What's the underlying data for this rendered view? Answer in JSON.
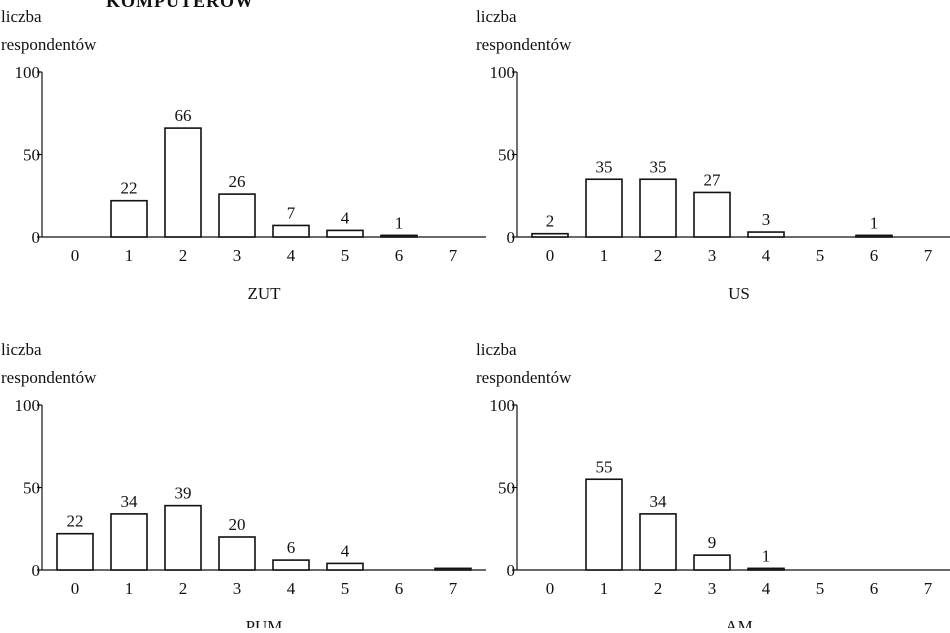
{
  "heading": "KOMPUTERÓW",
  "chart_data": [
    {
      "type": "bar",
      "ylabel": [
        "liczba",
        "respondentów"
      ],
      "xlabel": "ZUT",
      "categories": [
        "0",
        "1",
        "2",
        "3",
        "4",
        "5",
        "6",
        "7"
      ],
      "values": [
        0,
        22,
        66,
        26,
        7,
        4,
        1,
        0
      ],
      "labels": [
        "",
        "22",
        "66",
        "26",
        "7",
        "4",
        "1",
        ""
      ],
      "yticks": [
        "0",
        "50",
        "100"
      ],
      "ylim": [
        0,
        100
      ]
    },
    {
      "type": "bar",
      "ylabel": [
        "liczba",
        "respondentów"
      ],
      "xlabel": "US",
      "categories": [
        "0",
        "1",
        "2",
        "3",
        "4",
        "5",
        "6",
        "7"
      ],
      "values": [
        2,
        35,
        35,
        27,
        3,
        0,
        1,
        0
      ],
      "labels": [
        "2",
        "35",
        "35",
        "27",
        "3",
        "",
        "1",
        ""
      ],
      "yticks": [
        "0",
        "50",
        "100"
      ],
      "ylim": [
        0,
        100
      ]
    },
    {
      "type": "bar",
      "ylabel": [
        "liczba",
        "respondentów"
      ],
      "xlabel": "PUM",
      "categories": [
        "0",
        "1",
        "2",
        "3",
        "4",
        "5",
        "6",
        "7"
      ],
      "values": [
        22,
        34,
        39,
        20,
        6,
        4,
        0,
        1
      ],
      "labels": [
        "22",
        "34",
        "39",
        "20",
        "6",
        "4",
        "",
        ""
      ],
      "yticks": [
        "0",
        "50",
        "100"
      ],
      "ylim": [
        0,
        100
      ]
    },
    {
      "type": "bar",
      "ylabel": [
        "liczba",
        "respondentów"
      ],
      "xlabel": "AM",
      "categories": [
        "0",
        "1",
        "2",
        "3",
        "4",
        "5",
        "6",
        "7"
      ],
      "values": [
        0,
        55,
        34,
        9,
        1,
        0,
        0,
        0
      ],
      "labels": [
        "",
        "55",
        "34",
        "9",
        "1",
        "",
        "",
        ""
      ],
      "yticks": [
        "0",
        "50",
        "100"
      ],
      "ylim": [
        0,
        100
      ]
    }
  ]
}
